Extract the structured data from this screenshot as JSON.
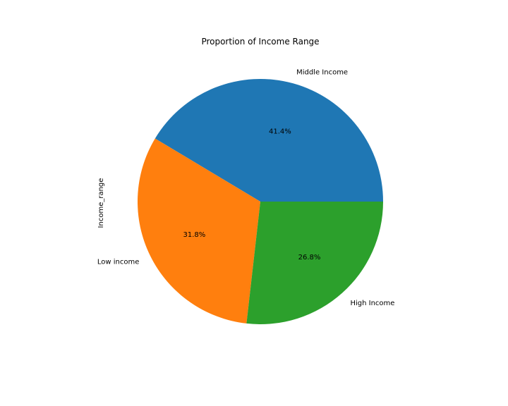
{
  "chart_data": {
    "type": "pie",
    "title": "Proportion of Income Range",
    "ylabel": "Income_range",
    "autopct_format": "%.1f%%",
    "start_angle_deg": 0,
    "direction": "counterclockwise",
    "legend": "none",
    "slices": [
      {
        "label": "Middle Income",
        "percent": 41.4,
        "percent_label": "41.4%",
        "color": "#1f77b4"
      },
      {
        "label": "Low income",
        "percent": 31.8,
        "percent_label": "31.8%",
        "color": "#ff7f0e"
      },
      {
        "label": "High Income",
        "percent": 26.8,
        "percent_label": "26.8%",
        "color": "#2ca02c"
      }
    ]
  }
}
